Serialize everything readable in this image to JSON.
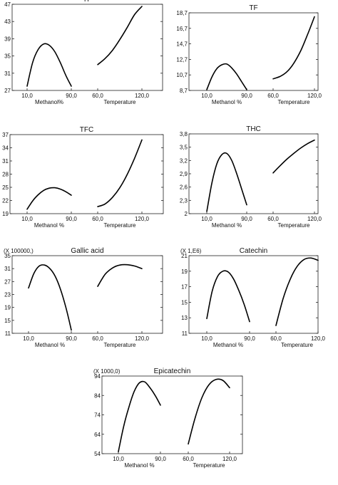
{
  "chart_data": [
    {
      "type": "line",
      "title": "TP",
      "y_prefix": "",
      "yticks": [
        "27",
        "31",
        "35",
        "39",
        "43",
        "47"
      ],
      "ylim": [
        27,
        47
      ],
      "panels": [
        {
          "xlabel": "Methanol%",
          "xticks": [
            "10,0",
            "90,0"
          ],
          "xlim": [
            10,
            90
          ],
          "x": [
            10,
            20,
            30,
            40,
            50,
            60,
            70,
            80,
            90
          ],
          "y": [
            28,
            33.5,
            36.5,
            37.8,
            37.5,
            36.0,
            33.5,
            30.5,
            28
          ]
        },
        {
          "xlabel": "Temperature",
          "xticks": [
            "60,0",
            "120,0"
          ],
          "xlim": [
            60,
            120
          ],
          "x": [
            60,
            70,
            80,
            90,
            100,
            110,
            120
          ],
          "y": [
            33,
            34.4,
            36.3,
            38.8,
            41.6,
            44.6,
            46.5
          ]
        }
      ]
    },
    {
      "type": "line",
      "title": "TF",
      "y_prefix": "",
      "yticks": [
        "8,7",
        "10,7",
        "12,7",
        "14,7",
        "16,7",
        "18,7"
      ],
      "ylim": [
        8.7,
        18.7
      ],
      "panels": [
        {
          "xlabel": "Methanol %",
          "xticks": [
            "10,0",
            "90,0"
          ],
          "xlim": [
            10,
            90
          ],
          "x": [
            10,
            20,
            30,
            40,
            50,
            60,
            70,
            80,
            90
          ],
          "y": [
            8.8,
            10.4,
            11.5,
            12.0,
            12.1,
            11.6,
            10.8,
            9.8,
            8.8
          ]
        },
        {
          "xlabel": "Temperature",
          "xticks": [
            "60,0",
            "120,0"
          ],
          "xlim": [
            60,
            120
          ],
          "x": [
            60,
            70,
            80,
            90,
            100,
            110,
            120
          ],
          "y": [
            10.2,
            10.5,
            11.1,
            12.2,
            13.8,
            15.9,
            18.2
          ]
        }
      ]
    },
    {
      "type": "line",
      "title": "TFC",
      "y_prefix": "",
      "yticks": [
        "19",
        "22",
        "25",
        "28",
        "31",
        "34",
        "37"
      ],
      "ylim": [
        19,
        37
      ],
      "panels": [
        {
          "xlabel": "Methanol %",
          "xticks": [
            "10,0",
            "90,0"
          ],
          "xlim": [
            10,
            90
          ],
          "x": [
            10,
            20,
            30,
            40,
            50,
            60,
            70,
            80,
            90
          ],
          "y": [
            20,
            21.9,
            23.3,
            24.3,
            24.8,
            24.9,
            24.6,
            24.0,
            23.2
          ]
        },
        {
          "xlabel": "Temperature",
          "xticks": [
            "60,0",
            "120,0"
          ],
          "xlim": [
            60,
            120
          ],
          "x": [
            60,
            70,
            80,
            90,
            100,
            110,
            120
          ],
          "y": [
            20.6,
            21.2,
            22.7,
            24.9,
            27.9,
            31.6,
            35.8
          ]
        }
      ]
    },
    {
      "type": "line",
      "title": "THC",
      "y_prefix": "",
      "yticks": [
        "2",
        "2,3",
        "2,6",
        "2,9",
        "3,2",
        "3,5",
        "3,8"
      ],
      "ylim": [
        2,
        3.8
      ],
      "panels": [
        {
          "xlabel": "Methanol %",
          "xticks": [
            "10,0",
            "90,0"
          ],
          "xlim": [
            10,
            90
          ],
          "x": [
            10,
            20,
            30,
            40,
            50,
            60,
            70,
            80,
            90
          ],
          "y": [
            2.05,
            2.68,
            3.12,
            3.33,
            3.36,
            3.2,
            2.9,
            2.55,
            2.2
          ]
        },
        {
          "xlabel": "Temperature",
          "xticks": [
            "60,0",
            "120,0"
          ],
          "xlim": [
            60,
            120
          ],
          "x": [
            60,
            70,
            80,
            90,
            100,
            110,
            120
          ],
          "y": [
            2.92,
            3.08,
            3.23,
            3.36,
            3.48,
            3.58,
            3.66
          ]
        }
      ]
    },
    {
      "type": "line",
      "title": "Gallic acid",
      "y_prefix": "(X 100000,)",
      "yticks": [
        "11",
        "15",
        "19",
        "23",
        "27",
        "31",
        "35"
      ],
      "ylim": [
        11,
        35
      ],
      "panels": [
        {
          "xlabel": "Methanol %",
          "xticks": [
            "10,0",
            "90,0"
          ],
          "xlim": [
            10,
            90
          ],
          "x": [
            10,
            20,
            30,
            40,
            50,
            60,
            70,
            80,
            90
          ],
          "y": [
            25,
            29.5,
            31.8,
            32.1,
            31.0,
            28.6,
            24.5,
            18.9,
            12
          ]
        },
        {
          "xlabel": "Temperature",
          "xticks": [
            "60,0",
            "120,0"
          ],
          "xlim": [
            60,
            120
          ],
          "x": [
            60,
            70,
            80,
            90,
            100,
            110,
            120
          ],
          "y": [
            25.5,
            29.2,
            31.2,
            32.1,
            32.2,
            31.8,
            31.0
          ]
        }
      ]
    },
    {
      "type": "line",
      "title": "Catechin",
      "y_prefix": "(X 1,E6)",
      "yticks": [
        "11",
        "13",
        "15",
        "17",
        "19",
        "21"
      ],
      "ylim": [
        11,
        21
      ],
      "panels": [
        {
          "xlabel": "Methanol %",
          "xticks": [
            "10,0",
            "90,0"
          ],
          "xlim": [
            10,
            90
          ],
          "x": [
            10,
            20,
            30,
            40,
            50,
            60,
            70,
            80,
            90
          ],
          "y": [
            12.9,
            16.4,
            18.3,
            19.0,
            18.9,
            18.0,
            16.5,
            14.7,
            12.5
          ]
        },
        {
          "xlabel": "Temperature",
          "xticks": [
            "60,0",
            "120,0"
          ],
          "xlim": [
            60,
            120
          ],
          "x": [
            60,
            70,
            80,
            90,
            100,
            110,
            120
          ],
          "y": [
            12,
            15.4,
            17.9,
            19.6,
            20.5,
            20.7,
            20.4
          ]
        }
      ]
    },
    {
      "type": "line",
      "title": "Epicatechin",
      "y_prefix": "(X 1000,0)",
      "yticks": [
        "54",
        "64",
        "74",
        "84",
        "94"
      ],
      "ylim": [
        54,
        94
      ],
      "panels": [
        {
          "xlabel": "Methanol %",
          "xticks": [
            "10,0",
            "90,0"
          ],
          "xlim": [
            10,
            90
          ],
          "x": [
            10,
            20,
            30,
            40,
            50,
            60,
            70,
            80,
            90
          ],
          "y": [
            55,
            68,
            78,
            86,
            90.5,
            91,
            88,
            84,
            79
          ]
        },
        {
          "xlabel": "Temperature",
          "xticks": [
            "60,0",
            "120,0"
          ],
          "xlim": [
            60,
            120
          ],
          "x": [
            60,
            70,
            80,
            90,
            100,
            110,
            120
          ],
          "y": [
            59,
            72.5,
            83,
            89.5,
            92.2,
            91.8,
            88
          ]
        }
      ]
    }
  ]
}
